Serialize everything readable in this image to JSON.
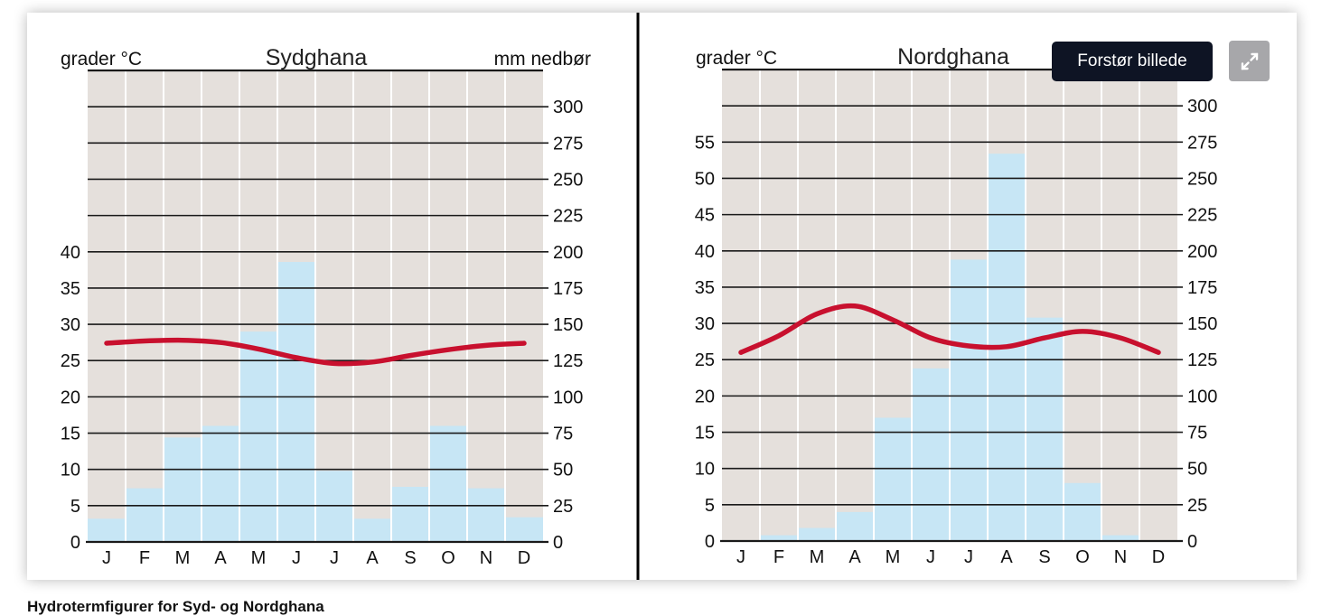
{
  "colors": {
    "plot_bg": "#e5e0dc",
    "bar": "#c7e6f5",
    "temperature_line": "#c8102e",
    "grid": "#1a1a1a",
    "tooltip_bg": "#0e1424"
  },
  "expand_button": {
    "icon": "expand-arrows-icon",
    "tooltip": "Forstør billede"
  },
  "caption": "Hydrotermfigurer for Syd- og Nordghana",
  "chart_data": [
    {
      "type": "bar+line",
      "title": "Sydghana",
      "y_left_label": "grader °C",
      "y_right_label": "mm nedbør",
      "categories": [
        "J",
        "F",
        "M",
        "A",
        "M",
        "J",
        "J",
        "A",
        "S",
        "O",
        "N",
        "D"
      ],
      "left_axis": {
        "range": [
          0,
          65
        ],
        "ticks": [
          0,
          5,
          10,
          15,
          20,
          25,
          30,
          35,
          40
        ]
      },
      "right_axis": {
        "range": [
          0,
          325
        ],
        "ticks": [
          0,
          25,
          50,
          75,
          100,
          125,
          150,
          175,
          200,
          225,
          250,
          275,
          300
        ]
      },
      "grid": true,
      "series": [
        {
          "kind": "bar",
          "axis": "right",
          "values": [
            16,
            37,
            72,
            80,
            145,
            193,
            49,
            16,
            38,
            80,
            37,
            17
          ]
        },
        {
          "kind": "line",
          "axis": "left",
          "values": [
            27.4,
            27.7,
            27.8,
            27.5,
            26.6,
            25.4,
            24.6,
            24.8,
            25.7,
            26.5,
            27.1,
            27.4
          ]
        }
      ]
    },
    {
      "type": "bar+line",
      "title": "Nordghana",
      "y_left_label": "grader °C",
      "y_right_label": "mm nedbør",
      "categories": [
        "J",
        "F",
        "M",
        "A",
        "M",
        "J",
        "J",
        "A",
        "S",
        "O",
        "N",
        "D"
      ],
      "left_axis": {
        "range": [
          0,
          65
        ],
        "ticks": [
          0,
          5,
          10,
          15,
          20,
          25,
          30,
          35,
          40,
          45,
          50,
          55
        ]
      },
      "right_axis": {
        "range": [
          0,
          325
        ],
        "ticks": [
          0,
          25,
          50,
          75,
          100,
          125,
          150,
          175,
          200,
          225,
          250,
          275,
          300
        ]
      },
      "grid": true,
      "series": [
        {
          "kind": "bar",
          "axis": "right",
          "values": [
            0,
            4,
            9,
            20,
            85,
            119,
            194,
            267,
            154,
            40,
            4,
            0
          ]
        },
        {
          "kind": "line",
          "axis": "left",
          "values": [
            26.0,
            28.3,
            31.3,
            32.4,
            30.5,
            28.0,
            26.9,
            26.8,
            28.0,
            28.9,
            28.0,
            26.0
          ]
        }
      ]
    }
  ]
}
